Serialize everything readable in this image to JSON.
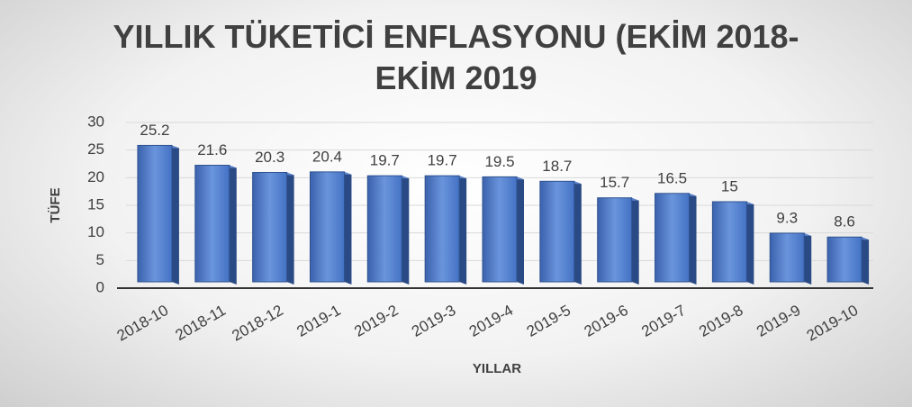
{
  "chart_data": {
    "type": "bar3d",
    "title": "YILLIK TÜKETİCİ ENFLASYONU (EKİM 2018-EKİM 2019",
    "x_label": "YILLAR",
    "y_label": "TÜFE",
    "categories": [
      "2018-10",
      "2018-11",
      "2018-12",
      "2019-1",
      "2019-2",
      "2019-3",
      "2019-4",
      "2019-5",
      "2019-6",
      "2019-7",
      "2019-8",
      "2019-9",
      "2019-10"
    ],
    "values": [
      25.2,
      21.6,
      20.3,
      20.4,
      19.7,
      19.7,
      19.5,
      18.7,
      15.7,
      16.5,
      15,
      9.3,
      8.6
    ],
    "color": "#4472c4",
    "ylim": [
      0,
      30
    ],
    "yticks": [
      0,
      5,
      10,
      15,
      20,
      25,
      30
    ],
    "grid": true
  }
}
